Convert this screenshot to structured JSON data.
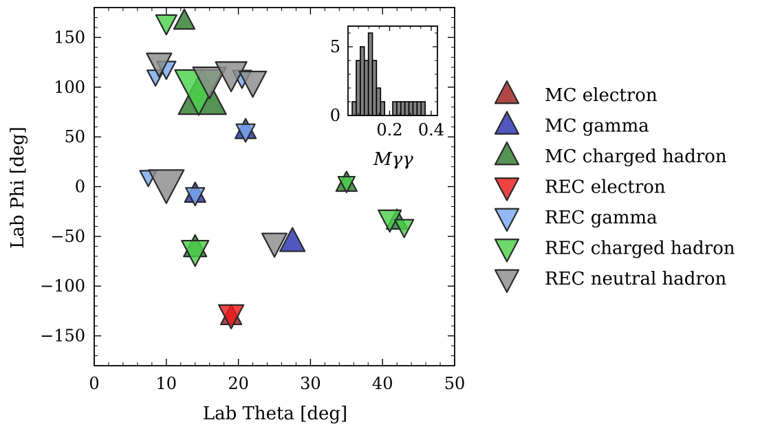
{
  "chart_data": [
    {
      "type": "scatter",
      "xlabel": "Lab Theta [deg]",
      "ylabel": "Lab Phi [deg]",
      "xlim": [
        0,
        50
      ],
      "ylim": [
        -180,
        180
      ],
      "xticks": [
        0,
        10,
        20,
        30,
        40,
        50
      ],
      "yticks": [
        -150,
        -100,
        -50,
        0,
        50,
        100,
        150
      ],
      "tick_labels_x": [
        "0",
        "10",
        "20",
        "30",
        "40",
        "50"
      ],
      "tick_labels_y": [
        "−150",
        "−100",
        "−50",
        "0",
        "50",
        "100",
        "150"
      ],
      "grid": false,
      "legend_position": "outside-right",
      "series": [
        {
          "name": "MC electron",
          "marker": "triangle-up",
          "color": "#a01e1e",
          "points": [
            {
              "x": 19,
              "y": -131,
              "size": 1.0
            }
          ]
        },
        {
          "name": "MC gamma",
          "marker": "triangle-up",
          "color": "#2a33b0",
          "points": [
            {
              "x": 21,
              "y": 56,
              "size": 1.0
            },
            {
              "x": 14,
              "y": -8,
              "size": 1.0
            },
            {
              "x": 27.5,
              "y": -56,
              "size": 1.2
            }
          ]
        },
        {
          "name": "MC charged hadron",
          "marker": "triangle-up",
          "color": "#2e7d2e",
          "points": [
            {
              "x": 12.5,
              "y": 166,
              "size": 1.0
            },
            {
              "x": 15,
              "y": 90,
              "size": 2.3
            },
            {
              "x": 14,
              "y": -62,
              "size": 1.1
            },
            {
              "x": 42,
              "y": -35,
              "size": 1.0
            },
            {
              "x": 35,
              "y": 3,
              "size": 1.0
            }
          ]
        },
        {
          "name": "REC electron",
          "marker": "triangle-down",
          "color": "#ee1a1a",
          "points": [
            {
              "x": 19,
              "y": -128,
              "size": 1.2
            }
          ]
        },
        {
          "name": "REC gamma",
          "marker": "triangle-down",
          "color": "#7aa8f0",
          "points": [
            {
              "x": 8.5,
              "y": 111,
              "size": 0.8
            },
            {
              "x": 10,
              "y": 119,
              "size": 0.9
            },
            {
              "x": 21,
              "y": 56,
              "size": 0.9
            },
            {
              "x": 7.5,
              "y": 10,
              "size": 0.8
            },
            {
              "x": 14,
              "y": -8,
              "size": 0.9
            },
            {
              "x": 20.5,
              "y": 110,
              "size": 0.9
            }
          ]
        },
        {
          "name": "REC charged hadron",
          "marker": "triangle-down",
          "color": "#4ad24a",
          "points": [
            {
              "x": 10,
              "y": 165,
              "size": 1.0
            },
            {
              "x": 14.5,
              "y": 100,
              "size": 2.3
            },
            {
              "x": 14,
              "y": -64,
              "size": 1.3
            },
            {
              "x": 41,
              "y": -32,
              "size": 1.1
            },
            {
              "x": 43,
              "y": -40,
              "size": 0.9
            },
            {
              "x": 35,
              "y": 4,
              "size": 0.8
            }
          ]
        },
        {
          "name": "REC neutral hadron",
          "marker": "triangle-down",
          "color": "#8c8c8c",
          "points": [
            {
              "x": 9,
              "y": 125,
              "size": 1.2
            },
            {
              "x": 16,
              "y": 108,
              "size": 1.6
            },
            {
              "x": 19,
              "y": 114,
              "size": 1.5
            },
            {
              "x": 22,
              "y": 106,
              "size": 1.3
            },
            {
              "x": 10,
              "y": 4,
              "size": 1.7
            },
            {
              "x": 25,
              "y": -56,
              "size": 1.2
            }
          ]
        }
      ]
    },
    {
      "type": "bar",
      "role": "inset-histogram",
      "xlabel": "Mγγ",
      "xlim": [
        0.0,
        0.43
      ],
      "ylim": [
        0,
        6.5
      ],
      "xticks": [
        0.2,
        0.4
      ],
      "yticks": [
        0,
        5
      ],
      "tick_labels_x": [
        "0.2",
        "0.4"
      ],
      "tick_labels_y": [
        "0",
        "5"
      ],
      "bin_width": 0.0195,
      "bins": [
        {
          "x0": 0.02,
          "count": 1
        },
        {
          "x0": 0.0395,
          "count": 4
        },
        {
          "x0": 0.059,
          "count": 5
        },
        {
          "x0": 0.0785,
          "count": 4
        },
        {
          "x0": 0.098,
          "count": 6
        },
        {
          "x0": 0.1175,
          "count": 4
        },
        {
          "x0": 0.137,
          "count": 2
        },
        {
          "x0": 0.1565,
          "count": 1
        },
        {
          "x0": 0.176,
          "count": 0
        },
        {
          "x0": 0.1955,
          "count": 0
        },
        {
          "x0": 0.215,
          "count": 1
        },
        {
          "x0": 0.2345,
          "count": 1
        },
        {
          "x0": 0.254,
          "count": 1
        },
        {
          "x0": 0.2735,
          "count": 1
        },
        {
          "x0": 0.293,
          "count": 1
        },
        {
          "x0": 0.3125,
          "count": 1
        },
        {
          "x0": 0.332,
          "count": 1
        },
        {
          "x0": 0.3515,
          "count": 1
        }
      ],
      "bar_color": "#808080"
    }
  ]
}
